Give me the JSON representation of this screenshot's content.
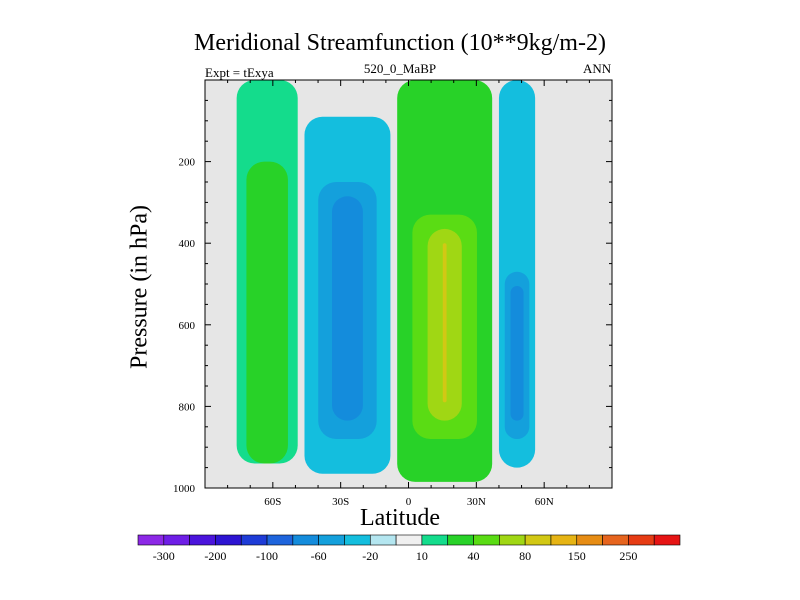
{
  "chart_data": {
    "type": "heatmap",
    "subtype": "filled-contour",
    "title": "Meridional Streamfunction (10**9kg/m-2)",
    "left_subtitle": "Expt = tExya",
    "center_subtitle": "520_0_MaBP",
    "right_subtitle": "ANN",
    "xlabel": "Latitude",
    "ylabel": "Pressure (in hPa)",
    "x_ticks": [
      {
        "value": -60,
        "label": "60S"
      },
      {
        "value": -30,
        "label": "30S"
      },
      {
        "value": 0,
        "label": "0"
      },
      {
        "value": 30,
        "label": "30N"
      },
      {
        "value": 60,
        "label": "60N"
      }
    ],
    "y_ticks": [
      {
        "value": 200,
        "label": "200"
      },
      {
        "value": 400,
        "label": "400"
      },
      {
        "value": 600,
        "label": "600"
      },
      {
        "value": 800,
        "label": "800"
      },
      {
        "value": 1000,
        "label": "1000"
      }
    ],
    "xlim": [
      -90,
      90
    ],
    "ylim": [
      1000,
      0
    ],
    "y_inverted": true,
    "background_fill": "#e6e6e6",
    "colorbar": {
      "colors": [
        "#8c28e6",
        "#6e1ee6",
        "#4b14dc",
        "#2d14d2",
        "#1e3cd7",
        "#1e64dc",
        "#148cdc",
        "#14a0dc",
        "#14bede",
        "#b4e6f0",
        "#f0f0f0",
        "#14dc8c",
        "#28d228",
        "#5adc14",
        "#a0d714",
        "#d2c814",
        "#e6b414",
        "#e68c14",
        "#e6641e",
        "#e63c14",
        "#e61414"
      ],
      "labels": [
        "-300",
        "-200",
        "-100",
        "-60",
        "-20",
        "10",
        "40",
        "80",
        "150",
        "250"
      ],
      "label_boundaries": [
        1,
        3,
        5,
        7,
        9,
        11,
        13,
        15,
        17,
        19
      ]
    },
    "fields": [
      {
        "name": "southern-positive-cell",
        "lon_min": -76,
        "lon_max": -49,
        "p_min": 0,
        "p_max": 940,
        "levels": [
          {
            "level": "10",
            "color": "#14dc8c"
          },
          {
            "level": "40",
            "color": "#28d228"
          }
        ],
        "core_p": [
          200,
          940
        ]
      },
      {
        "name": "southern-negative-cell",
        "lon_min": -46,
        "lon_max": -8,
        "p_min": 90,
        "p_max": 965,
        "levels": [
          {
            "level": "-10",
            "color": "#14bede"
          },
          {
            "level": "-20",
            "color": "#14a0dc"
          },
          {
            "level": "-40",
            "color": "#148cdc"
          }
        ],
        "core_p": [
          250,
          880
        ]
      },
      {
        "name": "equatorial-positive-cell",
        "lon_min": -5,
        "lon_max": 37,
        "p_min": 0,
        "p_max": 985,
        "levels": [
          {
            "level": "10",
            "color": "#28d228"
          },
          {
            "level": "40",
            "color": "#5adc14"
          },
          {
            "level": "80",
            "color": "#a0d714"
          },
          {
            "level": "150",
            "color": "#d2c814"
          }
        ],
        "core_p": [
          330,
          880
        ]
      },
      {
        "name": "northern-negative-cell",
        "lon_min": 40,
        "lon_max": 56,
        "p_min": 0,
        "p_max": 950,
        "levels": [
          {
            "level": "-10",
            "color": "#14bede"
          },
          {
            "level": "-20",
            "color": "#14a0dc"
          },
          {
            "level": "-40",
            "color": "#148cdc"
          }
        ],
        "core_p": [
          470,
          880
        ]
      }
    ]
  }
}
